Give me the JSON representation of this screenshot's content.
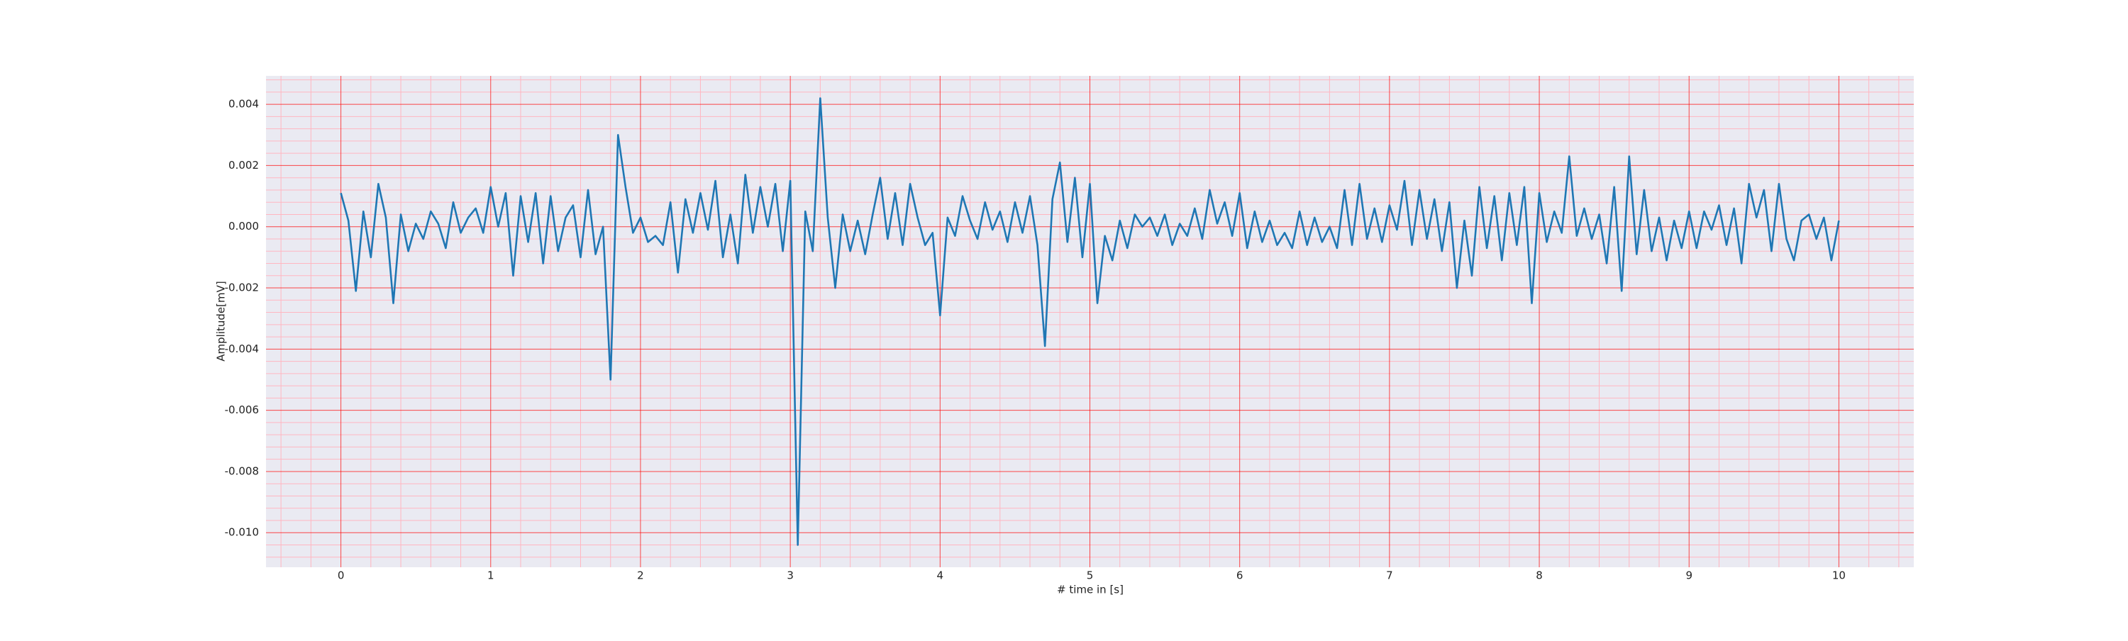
{
  "chart_data": {
    "type": "line",
    "xlabel": "# time in [s]",
    "ylabel": "Amplitude[mV]",
    "x": [
      0,
      0.05,
      0.1,
      0.15,
      0.2,
      0.25,
      0.3,
      0.35,
      0.4,
      0.45,
      0.5,
      0.55,
      0.6,
      0.65,
      0.7,
      0.75,
      0.8,
      0.85,
      0.9,
      0.95,
      1,
      1.05,
      1.1,
      1.15,
      1.2,
      1.25,
      1.3,
      1.35,
      1.4,
      1.45,
      1.5,
      1.55,
      1.6,
      1.65,
      1.7,
      1.75,
      1.8,
      1.85,
      1.9,
      1.95,
      2,
      2.05,
      2.1,
      2.15,
      2.2,
      2.25,
      2.3,
      2.35,
      2.4,
      2.45,
      2.5,
      2.55,
      2.6,
      2.65,
      2.7,
      2.75,
      2.8,
      2.85,
      2.9,
      2.95,
      3,
      3.05,
      3.1,
      3.15,
      3.2,
      3.25,
      3.3,
      3.35,
      3.4,
      3.45,
      3.5,
      3.55,
      3.6,
      3.65,
      3.7,
      3.75,
      3.8,
      3.85,
      3.9,
      3.95,
      4,
      4.05,
      4.1,
      4.15,
      4.2,
      4.25,
      4.3,
      4.35,
      4.4,
      4.45,
      4.5,
      4.55,
      4.6,
      4.65,
      4.7,
      4.75,
      4.8,
      4.85,
      4.9,
      4.95,
      5,
      5.05,
      5.1,
      5.15,
      5.2,
      5.25,
      5.3,
      5.35,
      5.4,
      5.45,
      5.5,
      5.55,
      5.6,
      5.65,
      5.7,
      5.75,
      5.8,
      5.85,
      5.9,
      5.95,
      6,
      6.05,
      6.1,
      6.15,
      6.2,
      6.25,
      6.3,
      6.35,
      6.4,
      6.45,
      6.5,
      6.55,
      6.6,
      6.65,
      6.7,
      6.75,
      6.8,
      6.85,
      6.9,
      6.95,
      7,
      7.05,
      7.1,
      7.15,
      7.2,
      7.25,
      7.3,
      7.35,
      7.4,
      7.45,
      7.5,
      7.55,
      7.6,
      7.65,
      7.7,
      7.75,
      7.8,
      7.85,
      7.9,
      7.95,
      8,
      8.05,
      8.1,
      8.15,
      8.2,
      8.25,
      8.3,
      8.35,
      8.4,
      8.45,
      8.5,
      8.55,
      8.6,
      8.65,
      8.7,
      8.75,
      8.8,
      8.85,
      8.9,
      8.95,
      9,
      9.05,
      9.1,
      9.15,
      9.2,
      9.25,
      9.3,
      9.35,
      9.4,
      9.45,
      9.5,
      9.55,
      9.6,
      9.65,
      9.7,
      9.75,
      9.8,
      9.85,
      9.9,
      9.95,
      10
    ],
    "series": [
      {
        "color": "#1f77b4",
        "values": [
          0.0011,
          0.0002,
          -0.0021,
          0.0005,
          -0.001,
          0.0014,
          0.0003,
          -0.0025,
          0.0004,
          -0.0008,
          0.0001,
          -0.0004,
          0.0005,
          0.0001,
          -0.0007,
          0.0008,
          -0.0002,
          0.0003,
          0.0006,
          -0.0002,
          0.0013,
          0.0,
          0.0011,
          -0.0016,
          0.001,
          -0.0005,
          0.0011,
          -0.0012,
          0.001,
          -0.0008,
          0.0003,
          0.0007,
          -0.001,
          0.0012,
          -0.0009,
          0.0,
          -0.005,
          0.003,
          0.0013,
          -0.0002,
          0.0003,
          -0.0005,
          -0.0003,
          -0.0006,
          0.0008,
          -0.0015,
          0.0009,
          -0.0002,
          0.0011,
          -0.0001,
          0.0015,
          -0.001,
          0.0004,
          -0.0012,
          0.0017,
          -0.0002,
          0.0013,
          0.0,
          0.0014,
          -0.0008,
          0.0015,
          -0.0104,
          0.0005,
          -0.0008,
          0.0042,
          0.0003,
          -0.002,
          0.0004,
          -0.0008,
          0.0002,
          -0.0009,
          0.0004,
          0.0016,
          -0.0004,
          0.0011,
          -0.0006,
          0.0014,
          0.0003,
          -0.0006,
          -0.0002,
          -0.0029,
          0.0003,
          -0.0003,
          0.001,
          0.0002,
          -0.0004,
          0.0008,
          -0.0001,
          0.0005,
          -0.0005,
          0.0008,
          -0.0002,
          0.001,
          -0.0006,
          -0.0039,
          0.0009,
          0.0021,
          -0.0005,
          0.0016,
          -0.001,
          0.0014,
          -0.0025,
          -0.0003,
          -0.0011,
          0.0002,
          -0.0007,
          0.0004,
          0.0,
          0.0003,
          -0.0003,
          0.0004,
          -0.0006,
          0.0001,
          -0.0003,
          0.0006,
          -0.0004,
          0.0012,
          0.0001,
          0.0008,
          -0.0003,
          0.0011,
          -0.0007,
          0.0005,
          -0.0005,
          0.0002,
          -0.0006,
          -0.0002,
          -0.0007,
          0.0005,
          -0.0006,
          0.0003,
          -0.0005,
          0.0,
          -0.0007,
          0.0012,
          -0.0006,
          0.0014,
          -0.0004,
          0.0006,
          -0.0005,
          0.0007,
          -0.0001,
          0.0015,
          -0.0006,
          0.0012,
          -0.0004,
          0.0009,
          -0.0008,
          0.0008,
          -0.002,
          0.0002,
          -0.0016,
          0.0013,
          -0.0007,
          0.001,
          -0.0011,
          0.0011,
          -0.0006,
          0.0013,
          -0.0025,
          0.0011,
          -0.0005,
          0.0005,
          -0.0002,
          0.0023,
          -0.0003,
          0.0006,
          -0.0004,
          0.0004,
          -0.0012,
          0.0013,
          -0.0021,
          0.0023,
          -0.0009,
          0.0012,
          -0.0008,
          0.0003,
          -0.0011,
          0.0002,
          -0.0007,
          0.0005,
          -0.0007,
          0.0005,
          -0.0001,
          0.0007,
          -0.0006,
          0.0006,
          -0.0012,
          0.0014,
          0.0003,
          0.0012,
          -0.0008,
          0.0014,
          -0.0004,
          -0.0011,
          0.0002,
          0.0004,
          -0.0004,
          0.0003,
          -0.0011,
          0.0002
        ]
      }
    ],
    "xlim": [
      -0.5,
      10.5
    ],
    "xticks": [
      0,
      1,
      2,
      3,
      4,
      5,
      6,
      7,
      8,
      9,
      10
    ],
    "ylim": [
      -0.01113,
      0.00493
    ],
    "yticks": [
      {
        "value": -0.01,
        "label": "-0.010"
      },
      -0.008,
      -0.006,
      -0.004,
      -0.002,
      {
        "value": 0,
        "label": "0.000"
      },
      0.002,
      0.004
    ],
    "grid": true,
    "minor_grid": true,
    "background": "#eaeaf2",
    "grid_color": "#ff0000",
    "minor_grid_color": "#ffb6c1"
  }
}
